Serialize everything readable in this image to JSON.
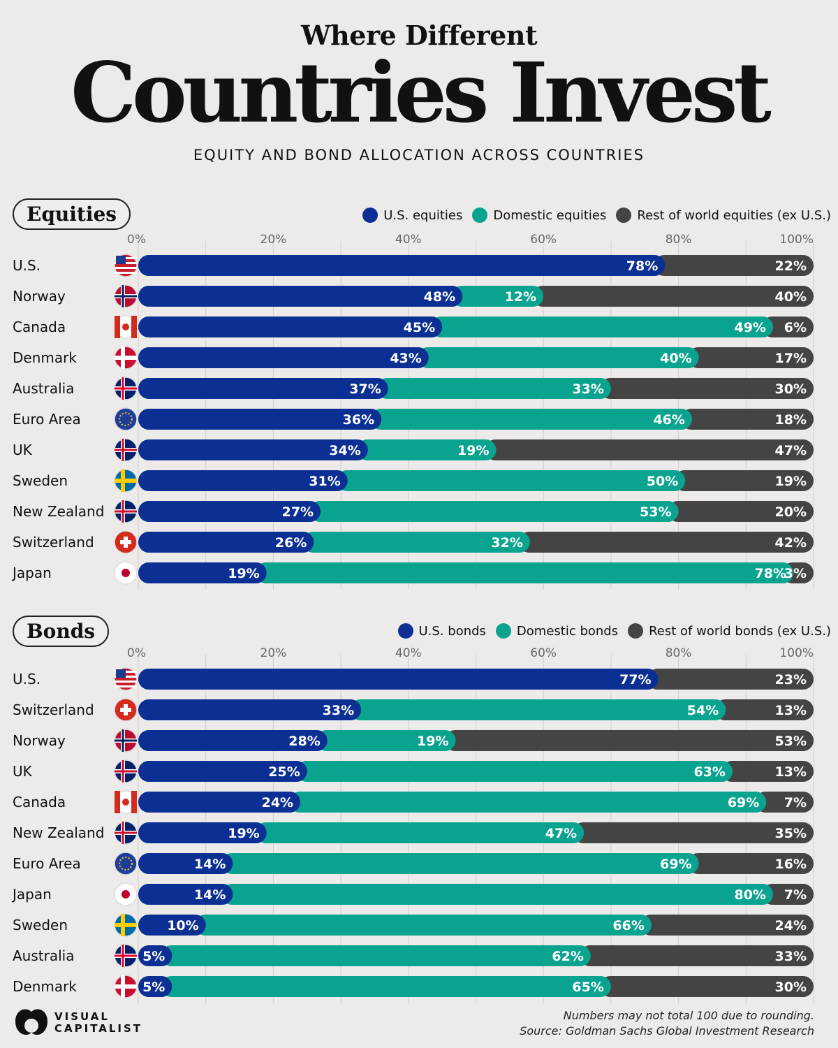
{
  "title_line1": "Where Different",
  "title_line2": "Countries Invest",
  "subtitle": "EQUITY AND BOND ALLOCATION ACROSS COUNTRIES",
  "colors": {
    "us": "#0b2f93",
    "domestic": "#0aa38f",
    "rest": "#444444",
    "grid": "#cfcfcf",
    "background": "#ecebea"
  },
  "chart_data": [
    {
      "type": "bar",
      "orientation": "horizontal",
      "stacked": true,
      "title": "Equities",
      "xlim": [
        0,
        100
      ],
      "xticks": [
        "0%",
        "20%",
        "40%",
        "60%",
        "80%",
        "100%"
      ],
      "grid": true,
      "legend_position": "top-right",
      "categories": [
        "U.S.",
        "Norway",
        "Canada",
        "Denmark",
        "Australia",
        "Euro Area",
        "UK",
        "Sweden",
        "New Zealand",
        "Switzerland",
        "Japan"
      ],
      "series": [
        {
          "name": "U.S. equities",
          "color": "#0b2f93",
          "values": [
            78,
            48,
            45,
            43,
            37,
            36,
            34,
            31,
            27,
            26,
            19
          ]
        },
        {
          "name": "Domestic equities",
          "color": "#0aa38f",
          "values": [
            null,
            12,
            49,
            40,
            33,
            46,
            19,
            50,
            53,
            32,
            78
          ]
        },
        {
          "name": "Rest of world equities (ex U.S.)",
          "color": "#444444",
          "values": [
            22,
            40,
            6,
            17,
            30,
            18,
            47,
            19,
            20,
            42,
            3
          ]
        }
      ]
    },
    {
      "type": "bar",
      "orientation": "horizontal",
      "stacked": true,
      "title": "Bonds",
      "xlim": [
        0,
        100
      ],
      "xticks": [
        "0%",
        "20%",
        "40%",
        "60%",
        "80%",
        "100%"
      ],
      "grid": true,
      "legend_position": "top-right",
      "categories": [
        "U.S.",
        "Switzerland",
        "Norway",
        "UK",
        "Canada",
        "New Zealand",
        "Euro Area",
        "Japan",
        "Sweden",
        "Australia",
        "Denmark"
      ],
      "series": [
        {
          "name": "U.S. bonds",
          "color": "#0b2f93",
          "values": [
            77,
            33,
            28,
            25,
            24,
            19,
            14,
            14,
            10,
            5,
            5
          ]
        },
        {
          "name": "Domestic bonds",
          "color": "#0aa38f",
          "values": [
            null,
            54,
            19,
            63,
            69,
            47,
            69,
            80,
            66,
            62,
            65
          ]
        },
        {
          "name": "Rest of world bonds (ex U.S.)",
          "color": "#444444",
          "values": [
            23,
            13,
            53,
            13,
            7,
            35,
            16,
            7,
            24,
            33,
            30
          ]
        }
      ]
    }
  ],
  "footer": {
    "note": "Numbers may not total 100 due to rounding.",
    "source": "Source: Goldman Sachs Global Investment Research",
    "logo": "VISUAL CAPITALIST"
  }
}
